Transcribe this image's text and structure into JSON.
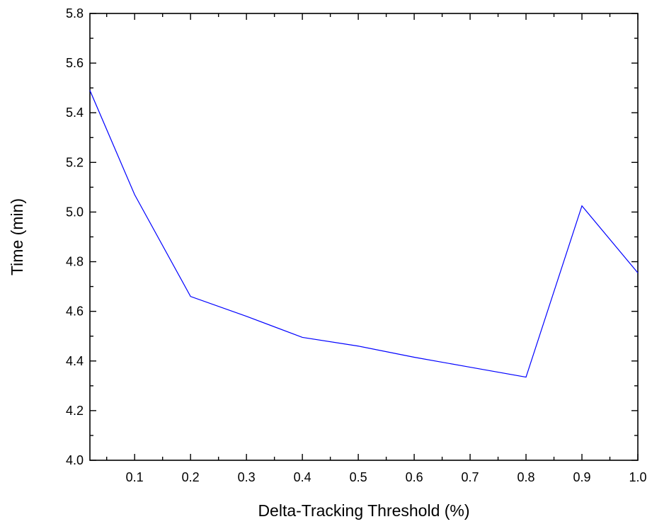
{
  "chart_data": {
    "type": "line",
    "title": "",
    "xlabel": "Delta-Tracking Threshold (%)",
    "ylabel": "Time (min)",
    "xlim": [
      0.02,
      1.0
    ],
    "ylim": [
      4.0,
      5.8
    ],
    "x_ticks": [
      "0.1",
      "0.2",
      "0.3",
      "0.4",
      "0.5",
      "0.6",
      "0.7",
      "0.8",
      "0.9",
      "1.0"
    ],
    "y_ticks": [
      "4.0",
      "4.2",
      "4.4",
      "4.6",
      "4.8",
      "5.0",
      "5.2",
      "5.4",
      "5.6",
      "5.8"
    ],
    "grid": false,
    "legend": "none",
    "series": [
      {
        "color": "#0000ff",
        "x": [
          0.02,
          0.1,
          0.2,
          0.3,
          0.4,
          0.5,
          0.6,
          0.7,
          0.8,
          0.9,
          1.0
        ],
        "y": [
          5.49,
          5.07,
          4.66,
          4.58,
          4.495,
          4.46,
          4.415,
          4.375,
          4.335,
          5.025,
          4.755
        ]
      }
    ]
  }
}
